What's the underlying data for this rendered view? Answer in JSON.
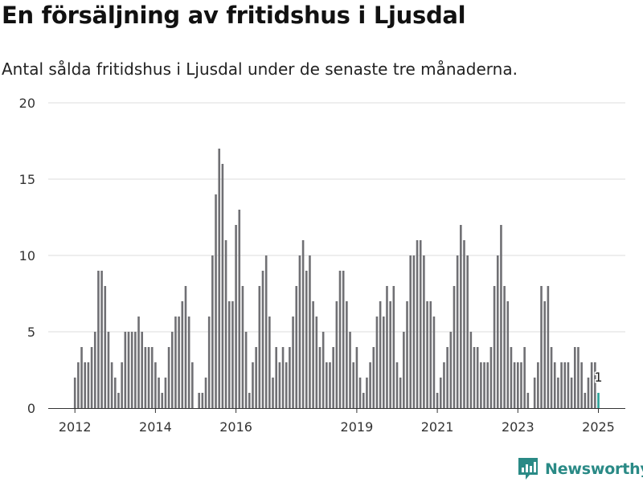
{
  "title": "En försäljning av fritidshus i Ljusdal",
  "subtitle": "Antal sålda fritidshus i Ljusdal under de senaste tre månaderna.",
  "brand": {
    "name": "Newsworthy"
  },
  "colors": {
    "bar": "#707074",
    "highlight": "#2aa198",
    "brand": "#2a8a86",
    "grid": "#dddddd"
  },
  "chart_data": {
    "type": "bar",
    "title": "En försäljning av fritidshus i Ljusdal",
    "xlabel": "",
    "ylabel": "",
    "ylim": [
      0,
      20
    ],
    "y_ticks": [
      0,
      5,
      10,
      15,
      20
    ],
    "x_ticks": [
      "2012",
      "2014",
      "2016",
      "2019",
      "2021",
      "2023",
      "2025"
    ],
    "x_tick_positions": [
      2012.0,
      2014.0,
      2016.0,
      2019.0,
      2021.0,
      2023.0,
      2025.0
    ],
    "grid": true,
    "start_month": "2012-01",
    "values": [
      2,
      3,
      4,
      3,
      3,
      4,
      5,
      9,
      9,
      8,
      5,
      3,
      2,
      1,
      3,
      5,
      5,
      5,
      5,
      6,
      5,
      4,
      4,
      4,
      3,
      2,
      1,
      2,
      4,
      5,
      6,
      6,
      7,
      8,
      6,
      3,
      0,
      1,
      1,
      2,
      6,
      10,
      14,
      17,
      16,
      11,
      7,
      7,
      12,
      13,
      8,
      5,
      1,
      3,
      4,
      8,
      9,
      10,
      6,
      2,
      4,
      3,
      4,
      3,
      4,
      6,
      8,
      10,
      11,
      9,
      10,
      7,
      6,
      4,
      5,
      3,
      3,
      4,
      7,
      9,
      9,
      7,
      5,
      3,
      4,
      2,
      1,
      2,
      3,
      4,
      6,
      7,
      6,
      8,
      7,
      8,
      3,
      2,
      5,
      7,
      10,
      10,
      11,
      11,
      10,
      7,
      7,
      6,
      1,
      2,
      3,
      4,
      5,
      8,
      10,
      12,
      11,
      10,
      5,
      4,
      4,
      3,
      3,
      3,
      4,
      8,
      10,
      12,
      8,
      7,
      4,
      3,
      3,
      3,
      4,
      1,
      0,
      2,
      3,
      8,
      7,
      8,
      4,
      3,
      2,
      3,
      3,
      3,
      2,
      4,
      4,
      3,
      1,
      2,
      3,
      3,
      1
    ],
    "highlight_last": true,
    "annotation": {
      "label": "1"
    }
  }
}
